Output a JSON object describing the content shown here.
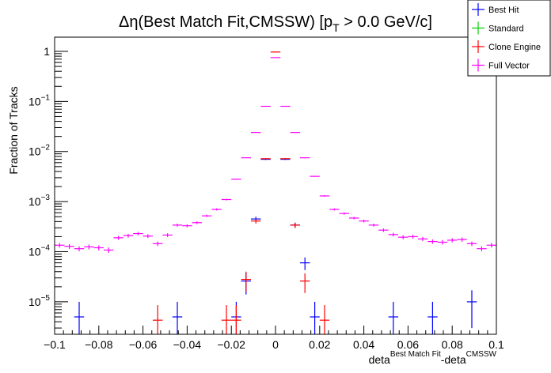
{
  "chart_data": {
    "type": "scatter",
    "title": "Δη(Best Match Fit,CMSSW) [p_T > 0.0 GeV/c]",
    "title_parts": {
      "pre": "Δη(Best Match Fit,CMSSW) [p",
      "sub": "T",
      "post": " > 0.0 GeV/c]"
    },
    "xlabel": "deta^{Best Match Fit}-deta^{CMSSW}",
    "xlabel_parts": {
      "a": "deta",
      "a_sup": "Best Match Fit",
      "b": "-deta",
      "b_sup": "CMSSW"
    },
    "ylabel": "Fraction of Tracks",
    "xlim": [
      -0.1,
      0.1
    ],
    "ylim": [
      2.25e-06,
      1.92
    ],
    "yscale": "log",
    "nbins": 45,
    "x_ticks": [
      {
        "value": -0.1,
        "label": "−0.1"
      },
      {
        "value": -0.08,
        "label": "−0.08"
      },
      {
        "value": -0.06,
        "label": "−0.06"
      },
      {
        "value": -0.04,
        "label": "−0.04"
      },
      {
        "value": -0.02,
        "label": "−0.02"
      },
      {
        "value": 0,
        "label": "0"
      },
      {
        "value": 0.02,
        "label": "0.02"
      },
      {
        "value": 0.04,
        "label": "0.04"
      },
      {
        "value": 0.06,
        "label": "0.06"
      },
      {
        "value": 0.08,
        "label": "0.08"
      },
      {
        "value": 0.1,
        "label": "0.1"
      }
    ],
    "y_ticks": [
      {
        "value": 1,
        "base": "1",
        "exp": ""
      },
      {
        "value": 0.1,
        "base": "10",
        "exp": "−1"
      },
      {
        "value": 0.01,
        "base": "10",
        "exp": "−2"
      },
      {
        "value": 0.001,
        "base": "10",
        "exp": "−3"
      },
      {
        "value": 0.0001,
        "base": "10",
        "exp": "−4"
      },
      {
        "value": 1e-05,
        "base": "10",
        "exp": "−5"
      }
    ],
    "grid": false,
    "legend_position": "top-right",
    "series": [
      {
        "name": "Best Hit",
        "color": "#0000ff",
        "points": [
          {
            "bin": 2,
            "y": 5e-06,
            "err": 5e-06
          },
          {
            "bin": 12,
            "y": 5e-06,
            "err": 5e-06
          },
          {
            "bin": 18,
            "y": 5e-06,
            "err": 5e-06
          },
          {
            "bin": 19,
            "y": 2.6e-05,
            "err": 1.2e-05
          },
          {
            "bin": 20,
            "y": 0.00045,
            "err": 5e-05
          },
          {
            "bin": 21,
            "y": 0.007,
            "err": 0.0002
          },
          {
            "bin": 23,
            "y": 0.007,
            "err": 0.0002
          },
          {
            "bin": 24,
            "y": 0.00034,
            "err": 4e-05
          },
          {
            "bin": 25,
            "y": 6e-05,
            "err": 1.7e-05
          },
          {
            "bin": 26,
            "y": 5e-06,
            "err": 5e-06
          },
          {
            "bin": 34,
            "y": 5e-06,
            "err": 5e-06
          },
          {
            "bin": 38,
            "y": 5e-06,
            "err": 5e-06
          },
          {
            "bin": 42,
            "y": 1e-05,
            "err": 7e-06
          }
        ]
      },
      {
        "name": "Standard",
        "color": "#00cc00",
        "points": []
      },
      {
        "name": "Clone Engine",
        "color": "#ff0000",
        "points": [
          {
            "bin": 10,
            "y": 4.3e-06,
            "err": 4.3e-06
          },
          {
            "bin": 17,
            "y": 4.3e-06,
            "err": 4.3e-06
          },
          {
            "bin": 18,
            "y": 4.3e-06,
            "err": 4.3e-06
          },
          {
            "bin": 19,
            "y": 2.8e-05,
            "err": 1.2e-05
          },
          {
            "bin": 20,
            "y": 0.00041,
            "err": 4.5e-05
          },
          {
            "bin": 21,
            "y": 0.0072,
            "err": 0.0002
          },
          {
            "bin": 22,
            "y": 0.97,
            "err": 0.002
          },
          {
            "bin": 23,
            "y": 0.0072,
            "err": 0.0002
          },
          {
            "bin": 24,
            "y": 0.00034,
            "err": 4e-05
          },
          {
            "bin": 25,
            "y": 2.6e-05,
            "err": 1.1e-05
          },
          {
            "bin": 27,
            "y": 4.3e-06,
            "err": 4.3e-06
          }
        ]
      },
      {
        "name": "Full Vector",
        "color": "#ff00ff",
        "points": [
          {
            "bin": 0,
            "y": 0.000135,
            "err": 1.4e-05
          },
          {
            "bin": 1,
            "y": 0.000128,
            "err": 1.4e-05
          },
          {
            "bin": 2,
            "y": 0.000115,
            "err": 1.3e-05
          },
          {
            "bin": 3,
            "y": 0.000125,
            "err": 1.4e-05
          },
          {
            "bin": 4,
            "y": 0.00012,
            "err": 1.4e-05
          },
          {
            "bin": 5,
            "y": 0.000108,
            "err": 1.3e-05
          },
          {
            "bin": 6,
            "y": 0.00019,
            "err": 1.7e-05
          },
          {
            "bin": 7,
            "y": 0.00021,
            "err": 1.8e-05
          },
          {
            "bin": 8,
            "y": 0.00023,
            "err": 1.9e-05
          },
          {
            "bin": 9,
            "y": 0.000205,
            "err": 1.8e-05
          },
          {
            "bin": 10,
            "y": 0.000145,
            "err": 1.5e-05
          },
          {
            "bin": 11,
            "y": 0.000215,
            "err": 1.8e-05
          },
          {
            "bin": 12,
            "y": 0.00034,
            "err": 2.3e-05
          },
          {
            "bin": 13,
            "y": 0.00033,
            "err": 2.2e-05
          },
          {
            "bin": 14,
            "y": 0.00038,
            "err": 2.4e-05
          },
          {
            "bin": 15,
            "y": 0.00052,
            "err": 2.8e-05
          },
          {
            "bin": 16,
            "y": 0.0007,
            "err": 3.2e-05
          },
          {
            "bin": 17,
            "y": 0.0011,
            "err": 4e-05
          },
          {
            "bin": 18,
            "y": 0.0028,
            "err": 6e-05
          },
          {
            "bin": 19,
            "y": 0.0075,
            "err": 0.0001
          },
          {
            "bin": 20,
            "y": 0.024,
            "err": 0.0002
          },
          {
            "bin": 21,
            "y": 0.08,
            "err": 0.0003
          },
          {
            "bin": 22,
            "y": 0.75,
            "err": 0.001
          },
          {
            "bin": 23,
            "y": 0.08,
            "err": 0.0003
          },
          {
            "bin": 24,
            "y": 0.024,
            "err": 0.0002
          },
          {
            "bin": 25,
            "y": 0.0075,
            "err": 0.0001
          },
          {
            "bin": 26,
            "y": 0.0032,
            "err": 7e-05
          },
          {
            "bin": 27,
            "y": 0.0013,
            "err": 4.5e-05
          },
          {
            "bin": 28,
            "y": 0.0007,
            "err": 3.2e-05
          },
          {
            "bin": 29,
            "y": 0.00058,
            "err": 3e-05
          },
          {
            "bin": 30,
            "y": 0.00047,
            "err": 2.7e-05
          },
          {
            "bin": 31,
            "y": 0.00041,
            "err": 2.5e-05
          },
          {
            "bin": 32,
            "y": 0.00034,
            "err": 2.3e-05
          },
          {
            "bin": 33,
            "y": 0.00027,
            "err": 2e-05
          },
          {
            "bin": 34,
            "y": 0.00022,
            "err": 1.9e-05
          },
          {
            "bin": 35,
            "y": 0.000195,
            "err": 1.8e-05
          },
          {
            "bin": 36,
            "y": 0.0002,
            "err": 1.8e-05
          },
          {
            "bin": 37,
            "y": 0.00018,
            "err": 1.7e-05
          },
          {
            "bin": 38,
            "y": 0.00016,
            "err": 1.6e-05
          },
          {
            "bin": 39,
            "y": 0.000155,
            "err": 1.6e-05
          },
          {
            "bin": 40,
            "y": 0.00017,
            "err": 1.6e-05
          },
          {
            "bin": 41,
            "y": 0.000175,
            "err": 1.7e-05
          },
          {
            "bin": 42,
            "y": 0.000145,
            "err": 1.5e-05
          },
          {
            "bin": 43,
            "y": 0.000115,
            "err": 1.3e-05
          },
          {
            "bin": 44,
            "y": 0.000135,
            "err": 1.4e-05
          }
        ]
      }
    ]
  }
}
